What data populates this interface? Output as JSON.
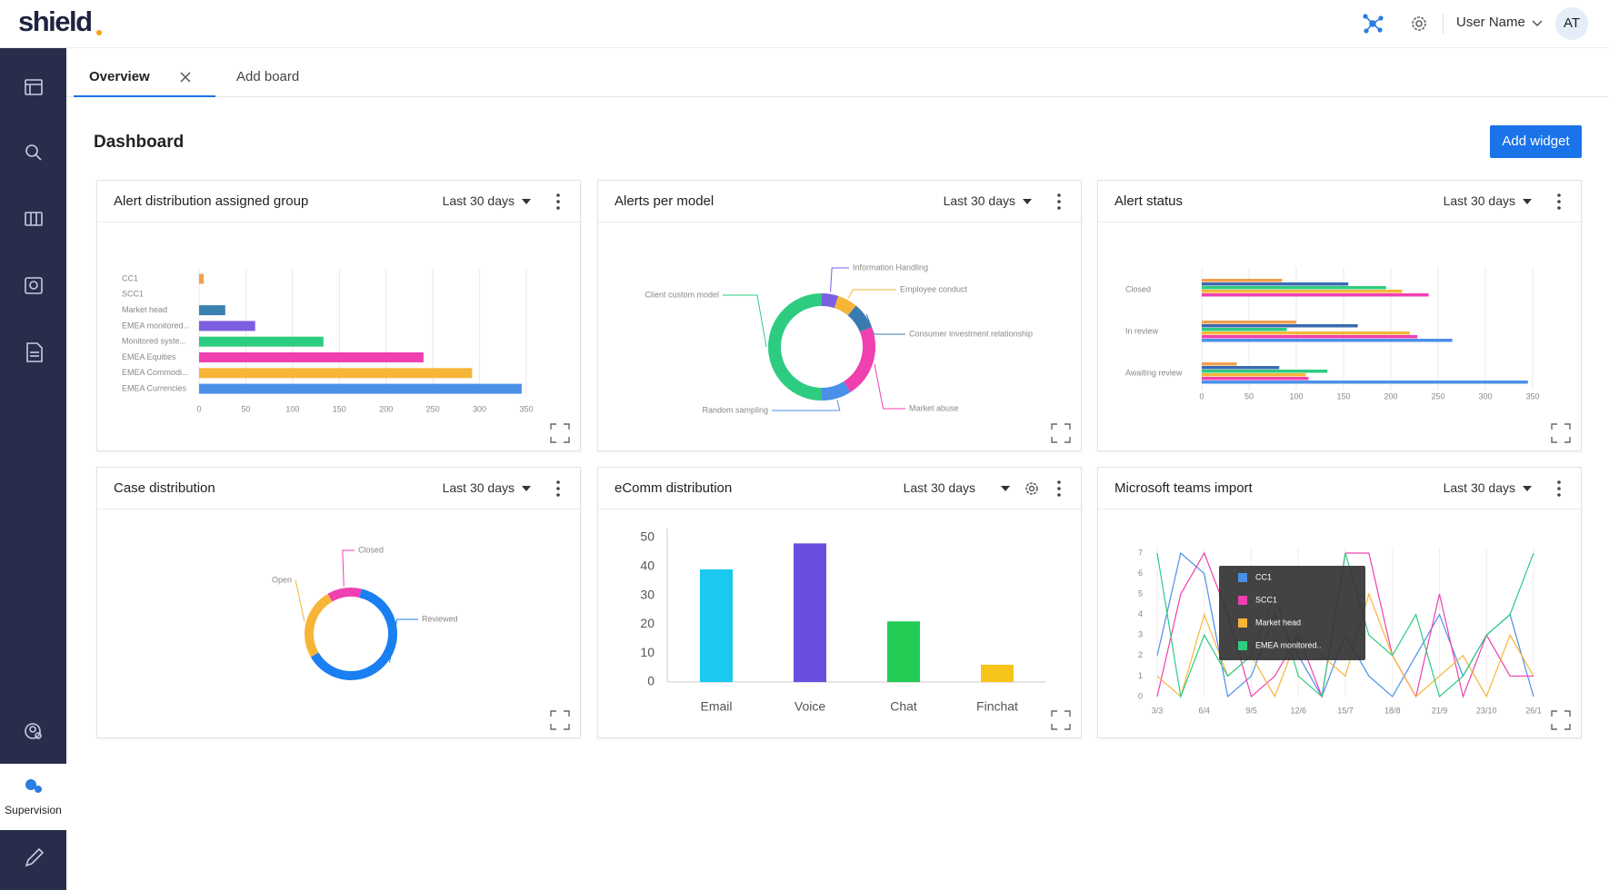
{
  "header": {
    "logo": "shield",
    "user_name": "User Name",
    "avatar": "AT"
  },
  "sidebar": {
    "active": "Supervision"
  },
  "tabs": [
    "Overview",
    "Add board"
  ],
  "dashboard": {
    "title": "Dashboard",
    "button": "Add widget"
  },
  "chart_data": [
    {
      "type": "bar",
      "horizontal": true,
      "title": "Alert distribution assigned group",
      "range": "Last 30 days",
      "categories": [
        "CC1",
        "SCC1",
        "Market head",
        "EMEA monitored...",
        "Monitored syste...",
        "EMEA Equities",
        "EMEA Commodi...",
        "EMEA Currencies"
      ],
      "values": [
        5,
        0,
        28,
        60,
        133,
        240,
        292,
        345
      ],
      "colors": [
        "#f0a050",
        "#e86ab8",
        "#3a80b0",
        "#7b5fe0",
        "#2ecc80",
        "#f040b0",
        "#f7b538",
        "#4a90e8"
      ],
      "xlim": [
        0,
        350
      ],
      "xticks": [
        0,
        50,
        100,
        150,
        200,
        250,
        300,
        350
      ],
      "grid": true
    },
    {
      "type": "donut",
      "title": "Alerts per model",
      "range": "Last 30 days",
      "categories": [
        "Information Handling",
        "Employee conduct",
        "Consumer investment relationship",
        "Market abuse",
        "Random sampling",
        "Client custom model"
      ],
      "values": [
        5,
        6,
        8,
        22,
        9,
        50
      ],
      "colors": [
        "#7b5fe0",
        "#f7b538",
        "#3a7ab0",
        "#f040b0",
        "#4a90e8",
        "#2ecc80"
      ]
    },
    {
      "type": "bar",
      "horizontal": true,
      "title": "Alert status",
      "range": "Last 30 days",
      "categories": [
        "Closed",
        "In review",
        "Awaiting review"
      ],
      "series": [
        {
          "color": "#f0a050",
          "values": [
            85,
            100,
            37
          ]
        },
        {
          "color": "#3a6ab0",
          "values": [
            155,
            165,
            82
          ]
        },
        {
          "color": "#2ecc80",
          "values": [
            195,
            90,
            133
          ]
        },
        {
          "color": "#f7b538",
          "values": [
            212,
            220,
            110
          ]
        },
        {
          "color": "#f040b0",
          "values": [
            240,
            228,
            113
          ]
        },
        {
          "color": "#4a90e8",
          "values": [
            0,
            265,
            345
          ]
        }
      ],
      "xlim": [
        0,
        350
      ],
      "xticks": [
        0,
        50,
        100,
        150,
        200,
        250,
        300,
        350
      ],
      "grid": true
    },
    {
      "type": "donut",
      "title": "Case distribution",
      "range": "Last 30 days",
      "categories": [
        "Closed",
        "Reviewed",
        "Open"
      ],
      "values": [
        12,
        63,
        25
      ],
      "colors": [
        "#f040b0",
        "#1a7ff0",
        "#f7b538"
      ]
    },
    {
      "type": "bar",
      "title": "eComm distribution",
      "range": "Last 30 days",
      "categories": [
        "Email",
        "Voice",
        "Chat",
        "Finchat"
      ],
      "values": [
        39,
        48,
        21,
        6
      ],
      "colors": [
        "#1ac8f0",
        "#6a4ee0",
        "#22cc55",
        "#f7c51a"
      ],
      "ylim": [
        0,
        50
      ],
      "yticks": [
        0,
        10,
        20,
        30,
        40,
        50
      ],
      "grid": false
    },
    {
      "type": "line",
      "title": "Microsoft teams import",
      "range": "Last 30 days",
      "categories": [
        "3/3",
        null,
        "6/4",
        null,
        "9/5",
        null,
        "12/6",
        null,
        "15/7",
        null,
        "18/8",
        null,
        "21/9",
        null,
        "23/10",
        null,
        "26/1"
      ],
      "series": [
        {
          "name": "CC1",
          "color": "#4a90e8",
          "values": [
            2,
            7,
            6,
            0,
            1,
            4,
            2,
            0,
            3,
            1,
            0,
            2,
            4,
            1,
            3,
            4,
            0
          ]
        },
        {
          "name": "SCC1",
          "color": "#f040b0",
          "values": [
            0,
            5,
            7,
            4,
            0,
            1,
            3,
            0,
            7,
            7,
            2,
            0,
            5,
            0,
            3,
            1,
            1
          ]
        },
        {
          "name": "Market head",
          "color": "#f7b538",
          "values": [
            1,
            0,
            4,
            1,
            2,
            0,
            3,
            2,
            1,
            5,
            2,
            0,
            1,
            2,
            0,
            3,
            1
          ]
        },
        {
          "name": "EMEA monitored..",
          "color": "#2ecc80",
          "values": [
            7,
            0,
            3,
            1,
            2,
            5,
            1,
            0,
            7,
            3,
            2,
            4,
            0,
            1,
            3,
            4,
            7
          ]
        }
      ],
      "ylim": [
        0,
        7
      ],
      "yticks": [
        0,
        1,
        2,
        3,
        4,
        5,
        6,
        7
      ],
      "grid": true,
      "legend": "upper left"
    }
  ]
}
